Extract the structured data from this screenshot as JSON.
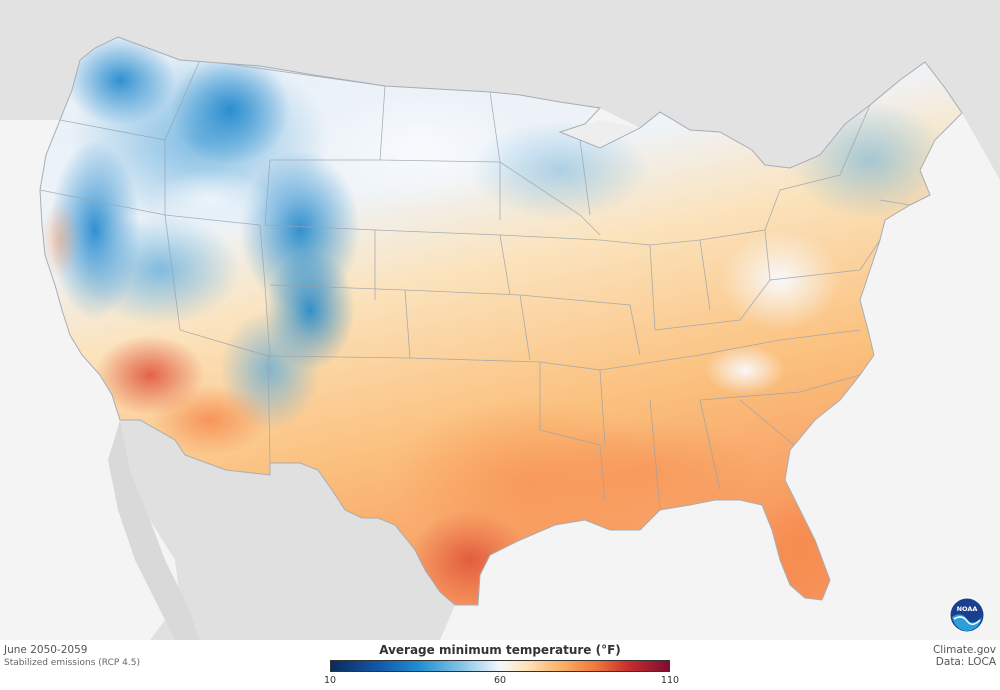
{
  "map": {
    "period": "June 2050-2059",
    "scenario": "Stabilized emissions (RCP 4.5)",
    "source": "Climate.gov",
    "data_source": "Data: LOCA"
  },
  "legend": {
    "title": "Average minimum temperature  (°F)",
    "ticks": [
      "10",
      "60",
      "110"
    ],
    "colors": {
      "cold": "#0b2a5e",
      "cool": "#1f8fd0",
      "neutral": "#f4f8fc",
      "warm": "#fbb169",
      "hot": "#7d0d31"
    }
  },
  "logo": {
    "text": "NOAA",
    "icon": "noaa-logo-icon"
  }
}
